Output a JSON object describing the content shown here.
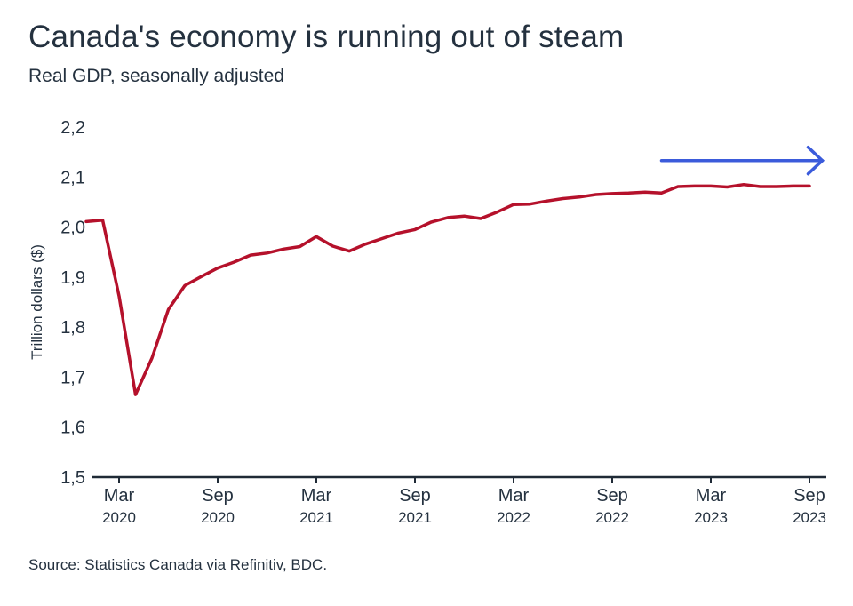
{
  "header": {
    "title": "Canada's economy is running out of steam",
    "subtitle": "Real GDP, seasonally adjusted"
  },
  "footer": {
    "source": "Source: Statistics Canada via Refinitiv, BDC."
  },
  "colors": {
    "series": "#b5112b",
    "arrow": "#3b5bdb",
    "axis": "#1f2a36",
    "text": "#24313f"
  },
  "chart_data": {
    "type": "line",
    "title": "Canada's economy is running out of steam",
    "subtitle": "Real GDP, seasonally adjusted",
    "ylabel": "Trillion dollars ($)",
    "xlabel": "",
    "ylim": [
      1.5,
      2.2
    ],
    "yticks": [
      "1,5",
      "1,6",
      "1,7",
      "1,8",
      "1,9",
      "2,0",
      "2,1",
      "2,2"
    ],
    "ytick_values": [
      1.5,
      1.6,
      1.7,
      1.8,
      1.9,
      2.0,
      2.1,
      2.2
    ],
    "xlim": [
      "2020-01",
      "2023-10"
    ],
    "xticks": [
      {
        "month": "Mar",
        "year": "2020",
        "date": "2020-03"
      },
      {
        "month": "Sep",
        "year": "2020",
        "date": "2020-09"
      },
      {
        "month": "Mar",
        "year": "2021",
        "date": "2021-03"
      },
      {
        "month": "Sep",
        "year": "2021",
        "date": "2021-09"
      },
      {
        "month": "Mar",
        "year": "2022",
        "date": "2022-03"
      },
      {
        "month": "Sep",
        "year": "2022",
        "date": "2022-09"
      },
      {
        "month": "Mar",
        "year": "2023",
        "date": "2023-03"
      },
      {
        "month": "Sep",
        "year": "2023",
        "date": "2023-09"
      }
    ],
    "grid": false,
    "legend": "none",
    "annotations": [
      {
        "type": "arrow",
        "direction": "right",
        "from": "2022-12",
        "to": "2023-10",
        "y": 2.133
      }
    ],
    "series": [
      {
        "x": [
          "2020-01",
          "2020-02",
          "2020-03",
          "2020-04",
          "2020-05",
          "2020-06",
          "2020-07",
          "2020-08",
          "2020-09",
          "2020-10",
          "2020-11",
          "2020-12",
          "2021-01",
          "2021-02",
          "2021-03",
          "2021-04",
          "2021-05",
          "2021-06",
          "2021-07",
          "2021-08",
          "2021-09",
          "2021-10",
          "2021-11",
          "2021-12",
          "2022-01",
          "2022-02",
          "2022-03",
          "2022-04",
          "2022-05",
          "2022-06",
          "2022-07",
          "2022-08",
          "2022-09",
          "2022-10",
          "2022-11",
          "2022-12",
          "2023-01",
          "2023-02",
          "2023-03",
          "2023-04",
          "2023-05",
          "2023-06",
          "2023-07",
          "2023-08",
          "2023-09"
        ],
        "values": [
          2.011,
          2.014,
          1.862,
          1.665,
          1.738,
          1.835,
          1.883,
          1.901,
          1.918,
          1.93,
          1.944,
          1.948,
          1.956,
          1.961,
          1.981,
          1.962,
          1.952,
          1.966,
          1.977,
          1.988,
          1.995,
          2.01,
          2.019,
          2.022,
          2.017,
          2.03,
          2.045,
          2.046,
          2.052,
          2.057,
          2.06,
          2.065,
          2.067,
          2.068,
          2.07,
          2.068,
          2.081,
          2.082,
          2.082,
          2.08,
          2.085,
          2.081,
          2.081,
          2.082,
          2.082
        ]
      }
    ]
  }
}
